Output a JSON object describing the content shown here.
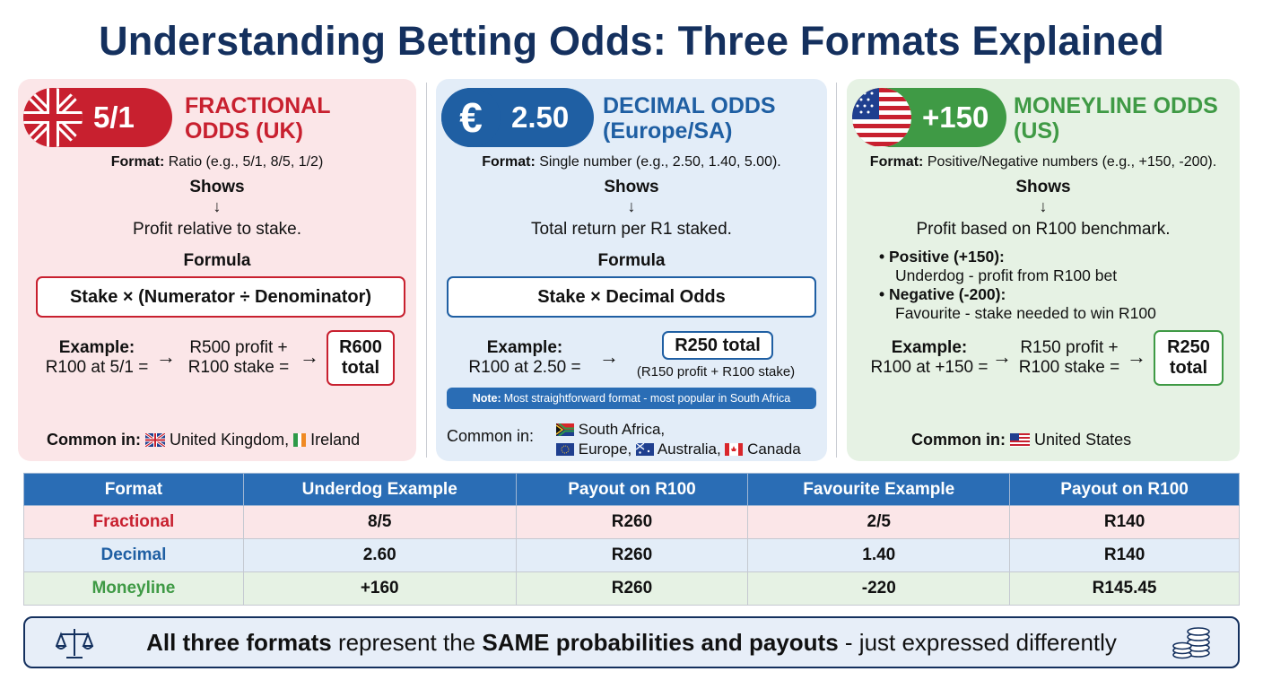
{
  "title": "Understanding Betting Odds: Three Formats Explained",
  "panels": {
    "fractional": {
      "badge_value": "5/1",
      "title_line1": "FRACTIONAL",
      "title_line2": "ODDS (UK)",
      "format_label": "Format:",
      "format_text": "Ratio (e.g., 5/1, 8/5, 1/2)",
      "shows": "Shows",
      "shows_desc": "Profit relative to stake.",
      "formula_label": "Formula",
      "formula": "Stake × (Numerator ÷ Denominator)",
      "example_label": "Example:",
      "example_text": "R100 at 5/1 =",
      "mid_line1": "R500 profit +",
      "mid_line2": "R100 stake =",
      "total_line1": "R600",
      "total_line2": "total",
      "common_label": "Common in:",
      "common_1": "United Kingdom,",
      "common_2": "Ireland"
    },
    "decimal": {
      "badge_symbol": "€",
      "badge_value": "2.50",
      "title_line1": "DECIMAL ODDS",
      "title_line2": "(Europe/SA)",
      "format_label": "Format:",
      "format_text": "Single number (e.g., 2.50, 1.40, 5.00).",
      "shows": "Shows",
      "shows_desc": "Total return per R1 staked.",
      "formula_label": "Formula",
      "formula": "Stake × Decimal Odds",
      "example_label": "Example:",
      "example_text": "R100 at 2.50 =",
      "total": "R250 total",
      "total_note": "(R150 profit + R100 stake)",
      "note_label": "Note:",
      "note_text": "Most straightforward format - most popular in South Africa",
      "common_label": "Common in:",
      "common_1": "South Africa,",
      "common_2": "Europe,",
      "common_3": "Australia,",
      "common_4": "Canada"
    },
    "moneyline": {
      "badge_value": "+150",
      "title_line1": "MONEYLINE ODDS",
      "title_line2": "(US)",
      "format_label": "Format:",
      "format_text": "Positive/Negative numbers (e.g., +150, -200).",
      "shows": "Shows",
      "shows_desc": "Profit based on R100 benchmark.",
      "pos_label": "Positive (+150):",
      "pos_text": "Underdog - profit from R100 bet",
      "neg_label": "Negative (-200):",
      "neg_text": "Favourite - stake needed to win R100",
      "example_label": "Example:",
      "example_text": "R100 at +150 =",
      "mid_line1": "R150 profit +",
      "mid_line2": "R100 stake =",
      "total_line1": "R250",
      "total_line2": "total",
      "common_label": "Common in:",
      "common_1": "United States"
    }
  },
  "table": {
    "headers": [
      "Format",
      "Underdog Example",
      "Payout on R100",
      "Favourite Example",
      "Payout on R100"
    ],
    "rows": [
      [
        "Fractional",
        "8/5",
        "R260",
        "2/5",
        "R140"
      ],
      [
        "Decimal",
        "2.60",
        "R260",
        "1.40",
        "R140"
      ],
      [
        "Moneyline",
        "+160",
        "R260",
        "-220",
        "R145.45"
      ]
    ]
  },
  "banner": {
    "bold1": "All three formats",
    "text1": "represent the",
    "bold2": "SAME probabilities and payouts",
    "text2": "- just expressed differently"
  },
  "colors": {
    "fractional": "#c8202f",
    "decimal": "#1f5fa3",
    "moneyline": "#3f9a45",
    "title": "#14305e",
    "table_header": "#2a6db5"
  },
  "icons": [
    "uk-flag-icon",
    "euro-icon",
    "us-flag-icon",
    "arrow-down-icon",
    "arrow-right-icon",
    "ireland-flag-icon",
    "south-africa-flag-icon",
    "eu-flag-icon",
    "australia-flag-icon",
    "canada-flag-icon",
    "scales-icon",
    "coins-icon"
  ]
}
